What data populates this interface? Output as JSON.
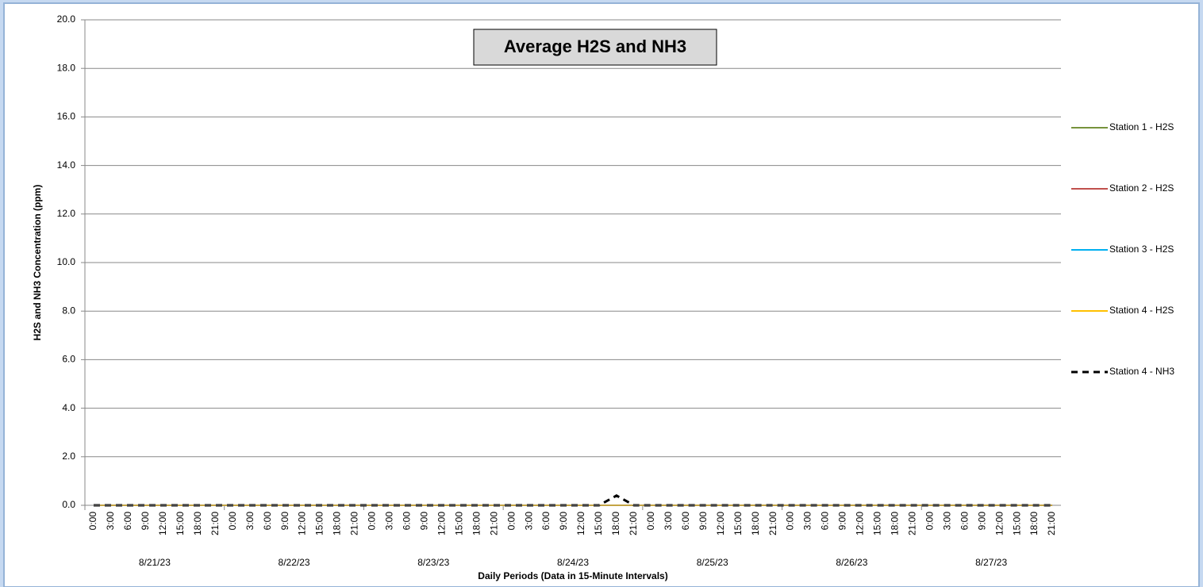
{
  "chart_data": {
    "type": "line",
    "title": "Average H2S and NH3",
    "y_label": "H2S and NH3 Concentration (ppm)",
    "x_label": "Daily Periods (Data in 15-Minute Intervals)",
    "categories": [
      "0:00",
      "3:00",
      "6:00",
      "9:00",
      "12:00",
      "15:00",
      "18:00",
      "21:00",
      "0:00",
      "3:00",
      "6:00",
      "9:00",
      "12:00",
      "15:00",
      "18:00",
      "21:00",
      "0:00",
      "3:00",
      "6:00",
      "9:00",
      "12:00",
      "15:00",
      "18:00",
      "21:00",
      "0:00",
      "3:00",
      "6:00",
      "9:00",
      "12:00",
      "15:00",
      "18:00",
      "21:00",
      "0:00",
      "3:00",
      "6:00",
      "9:00",
      "12:00",
      "15:00",
      "18:00",
      "21:00",
      "0:00",
      "3:00",
      "6:00",
      "9:00",
      "12:00",
      "15:00",
      "18:00",
      "21:00",
      "0:00",
      "3:00",
      "6:00",
      "9:00",
      "12:00",
      "15:00",
      "18:00",
      "21:00"
    ],
    "groups": [
      "8/21/23",
      "8/22/23",
      "8/23/23",
      "8/24/23",
      "8/25/23",
      "8/26/23",
      "8/27/23"
    ],
    "series": [
      {
        "name": "Station 1 - H2S",
        "color": "#77933c",
        "dash": false,
        "values": [
          0,
          0,
          0,
          0,
          0,
          0,
          0,
          0,
          0,
          0,
          0,
          0,
          0,
          0,
          0,
          0,
          0,
          0,
          0,
          0,
          0,
          0,
          0,
          0,
          0,
          0,
          0,
          0,
          0,
          0,
          0,
          0,
          0,
          0,
          0,
          0,
          0,
          0,
          0,
          0,
          0,
          0,
          0,
          0,
          0,
          0,
          0,
          0,
          0,
          0,
          0,
          0,
          0,
          0,
          0,
          0
        ]
      },
      {
        "name": "Station 2 - H2S",
        "color": "#c0504d",
        "dash": false,
        "values": [
          0,
          0,
          0,
          0,
          0,
          0,
          0,
          0,
          0,
          0,
          0,
          0,
          0,
          0,
          0,
          0,
          0,
          0,
          0,
          0,
          0,
          0,
          0,
          0,
          0,
          0,
          0,
          0,
          0,
          0,
          0,
          0,
          0,
          0,
          0,
          0,
          0,
          0,
          0,
          0,
          0,
          0,
          0,
          0,
          0,
          0,
          0,
          0,
          0,
          0,
          0,
          0,
          0,
          0,
          0,
          0
        ]
      },
      {
        "name": "Station 3 - H2S",
        "color": "#00b0f0",
        "dash": false,
        "values": [
          0,
          0,
          0,
          0,
          0,
          0,
          0,
          0,
          0,
          0,
          0,
          0,
          0,
          0,
          0,
          0,
          0,
          0,
          0,
          0,
          0,
          0,
          0,
          0,
          0,
          0,
          0,
          0,
          0,
          0,
          0,
          0,
          0,
          0,
          0,
          0,
          0,
          0,
          0,
          0,
          0,
          0,
          0,
          0,
          0,
          0,
          0,
          0,
          0,
          0,
          0,
          0,
          0,
          0,
          0,
          0
        ]
      },
      {
        "name": "Station 4 - H2S",
        "color": "#ffc000",
        "dash": false,
        "values": [
          0,
          0,
          0,
          0,
          0,
          0,
          0,
          0,
          0,
          0,
          0,
          0,
          0,
          0,
          0,
          0,
          0,
          0,
          0,
          0,
          0,
          0,
          0,
          0,
          0,
          0,
          0,
          0,
          0,
          0,
          0,
          0,
          0,
          0,
          0,
          0,
          0,
          0,
          0,
          0,
          0,
          0,
          0,
          0,
          0,
          0,
          0,
          0,
          0,
          0,
          0,
          0,
          0,
          0,
          0,
          0
        ]
      },
      {
        "name": "Station 4 - NH3",
        "color": "#000000",
        "dash": true,
        "values": [
          0,
          0,
          0,
          0,
          0,
          0,
          0,
          0,
          0,
          0,
          0,
          0,
          0,
          0,
          0,
          0,
          0,
          0,
          0,
          0,
          0,
          0,
          0,
          0,
          0,
          0,
          0,
          0,
          0,
          0,
          0.4,
          0,
          0,
          0,
          0,
          0,
          0,
          0,
          0,
          0,
          0,
          0,
          0,
          0,
          0,
          0,
          0,
          0,
          0,
          0,
          0,
          0,
          0,
          0,
          0,
          0
        ]
      }
    ],
    "ylim": [
      0,
      20
    ],
    "yticks": [
      {
        "value": 0,
        "label": "0.0"
      },
      {
        "value": 2,
        "label": "2.0"
      },
      {
        "value": 4,
        "label": "4.0"
      },
      {
        "value": 6,
        "label": "6.0"
      },
      {
        "value": 8,
        "label": "8.0"
      },
      {
        "value": 10,
        "label": "10.0"
      },
      {
        "value": 12,
        "label": "12.0"
      },
      {
        "value": 14,
        "label": "14.0"
      },
      {
        "value": 16,
        "label": "16.0"
      },
      {
        "value": 18,
        "label": "18.0"
      },
      {
        "value": 20,
        "label": "20.0"
      }
    ],
    "grid": true,
    "legend": "right"
  }
}
